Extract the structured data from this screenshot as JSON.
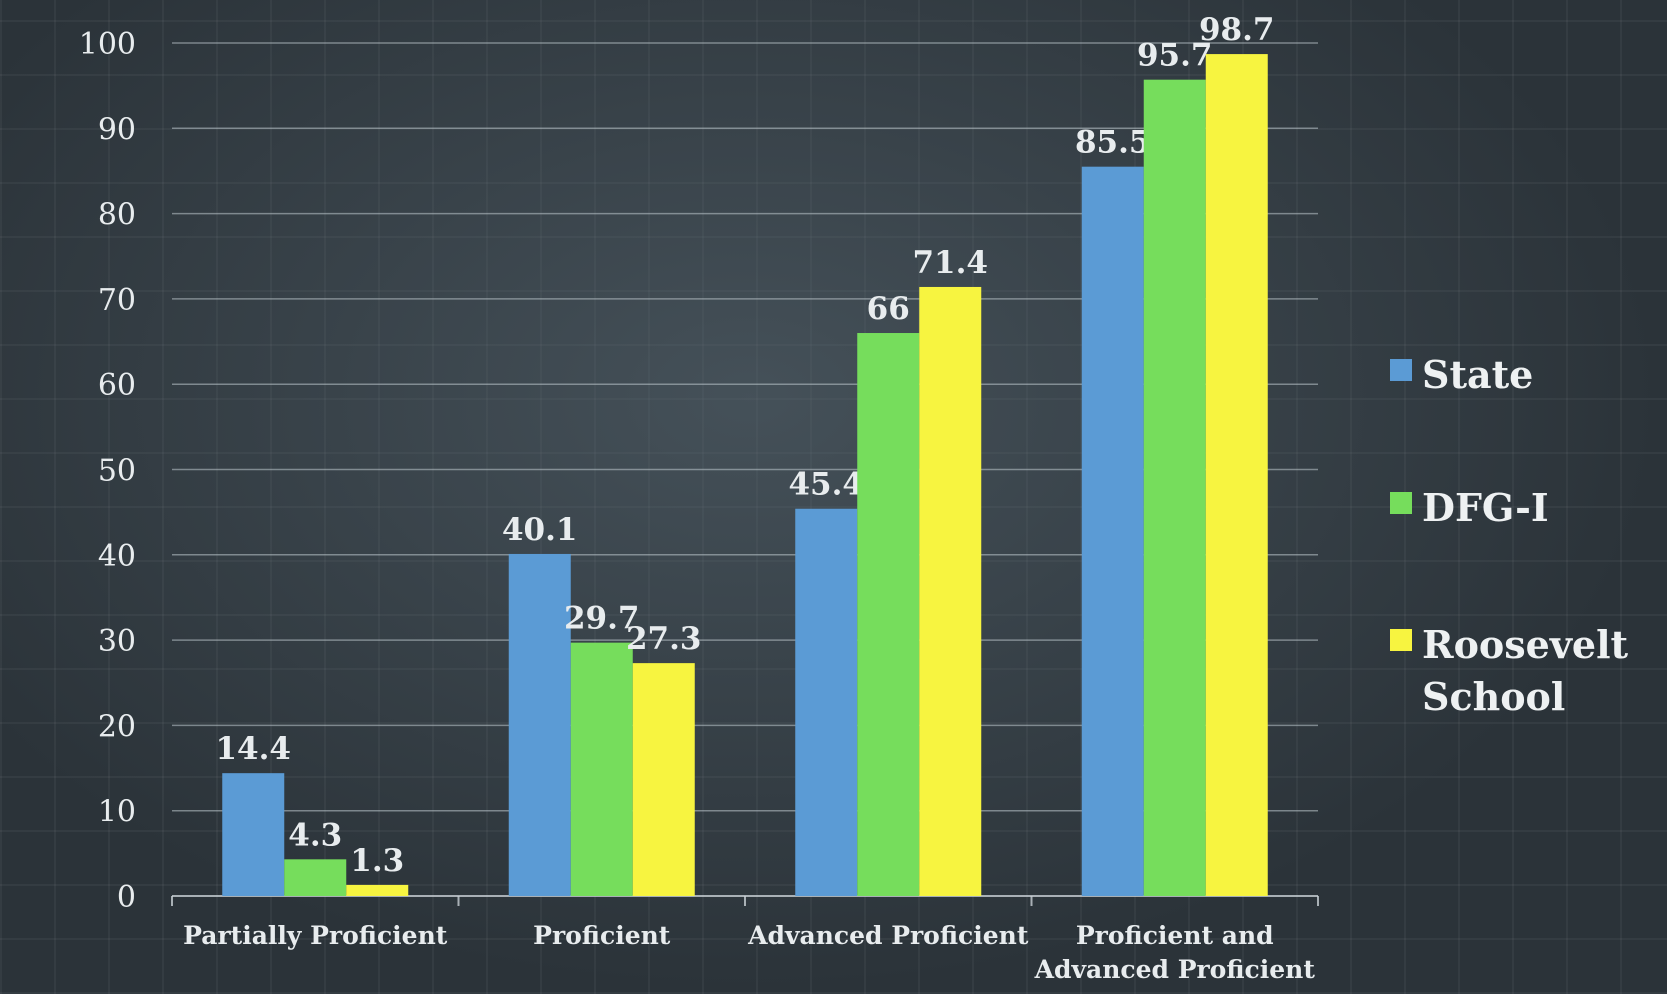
{
  "chart_data": {
    "type": "bar",
    "title": "",
    "xlabel": "",
    "ylabel": "",
    "ylim": [
      0,
      100
    ],
    "yticks": [
      0,
      10,
      20,
      30,
      40,
      50,
      60,
      70,
      80,
      90,
      100
    ],
    "grid": true,
    "legend_position": "right",
    "categories": [
      "Partially Proficient",
      "Proficient",
      "Advanced Proficient",
      "Proficient and Advanced Proficient"
    ],
    "series": [
      {
        "name": "State",
        "color": "#5b9bd5",
        "values": [
          14.4,
          40.1,
          45.4,
          85.5
        ],
        "labels": [
          "14.4",
          "40.1",
          "45.4",
          "85.5"
        ]
      },
      {
        "name": "DFG-I",
        "color": "#76dd5c",
        "values": [
          4.3,
          29.7,
          66,
          95.7
        ],
        "labels": [
          "4.3",
          "29.7",
          "66",
          "95.7"
        ]
      },
      {
        "name": "Roosevelt School",
        "color": "#f7f440",
        "values": [
          1.3,
          27.3,
          71.4,
          98.7
        ],
        "labels": [
          "1.3",
          "27.3",
          "71.4",
          "98.7"
        ]
      }
    ]
  }
}
